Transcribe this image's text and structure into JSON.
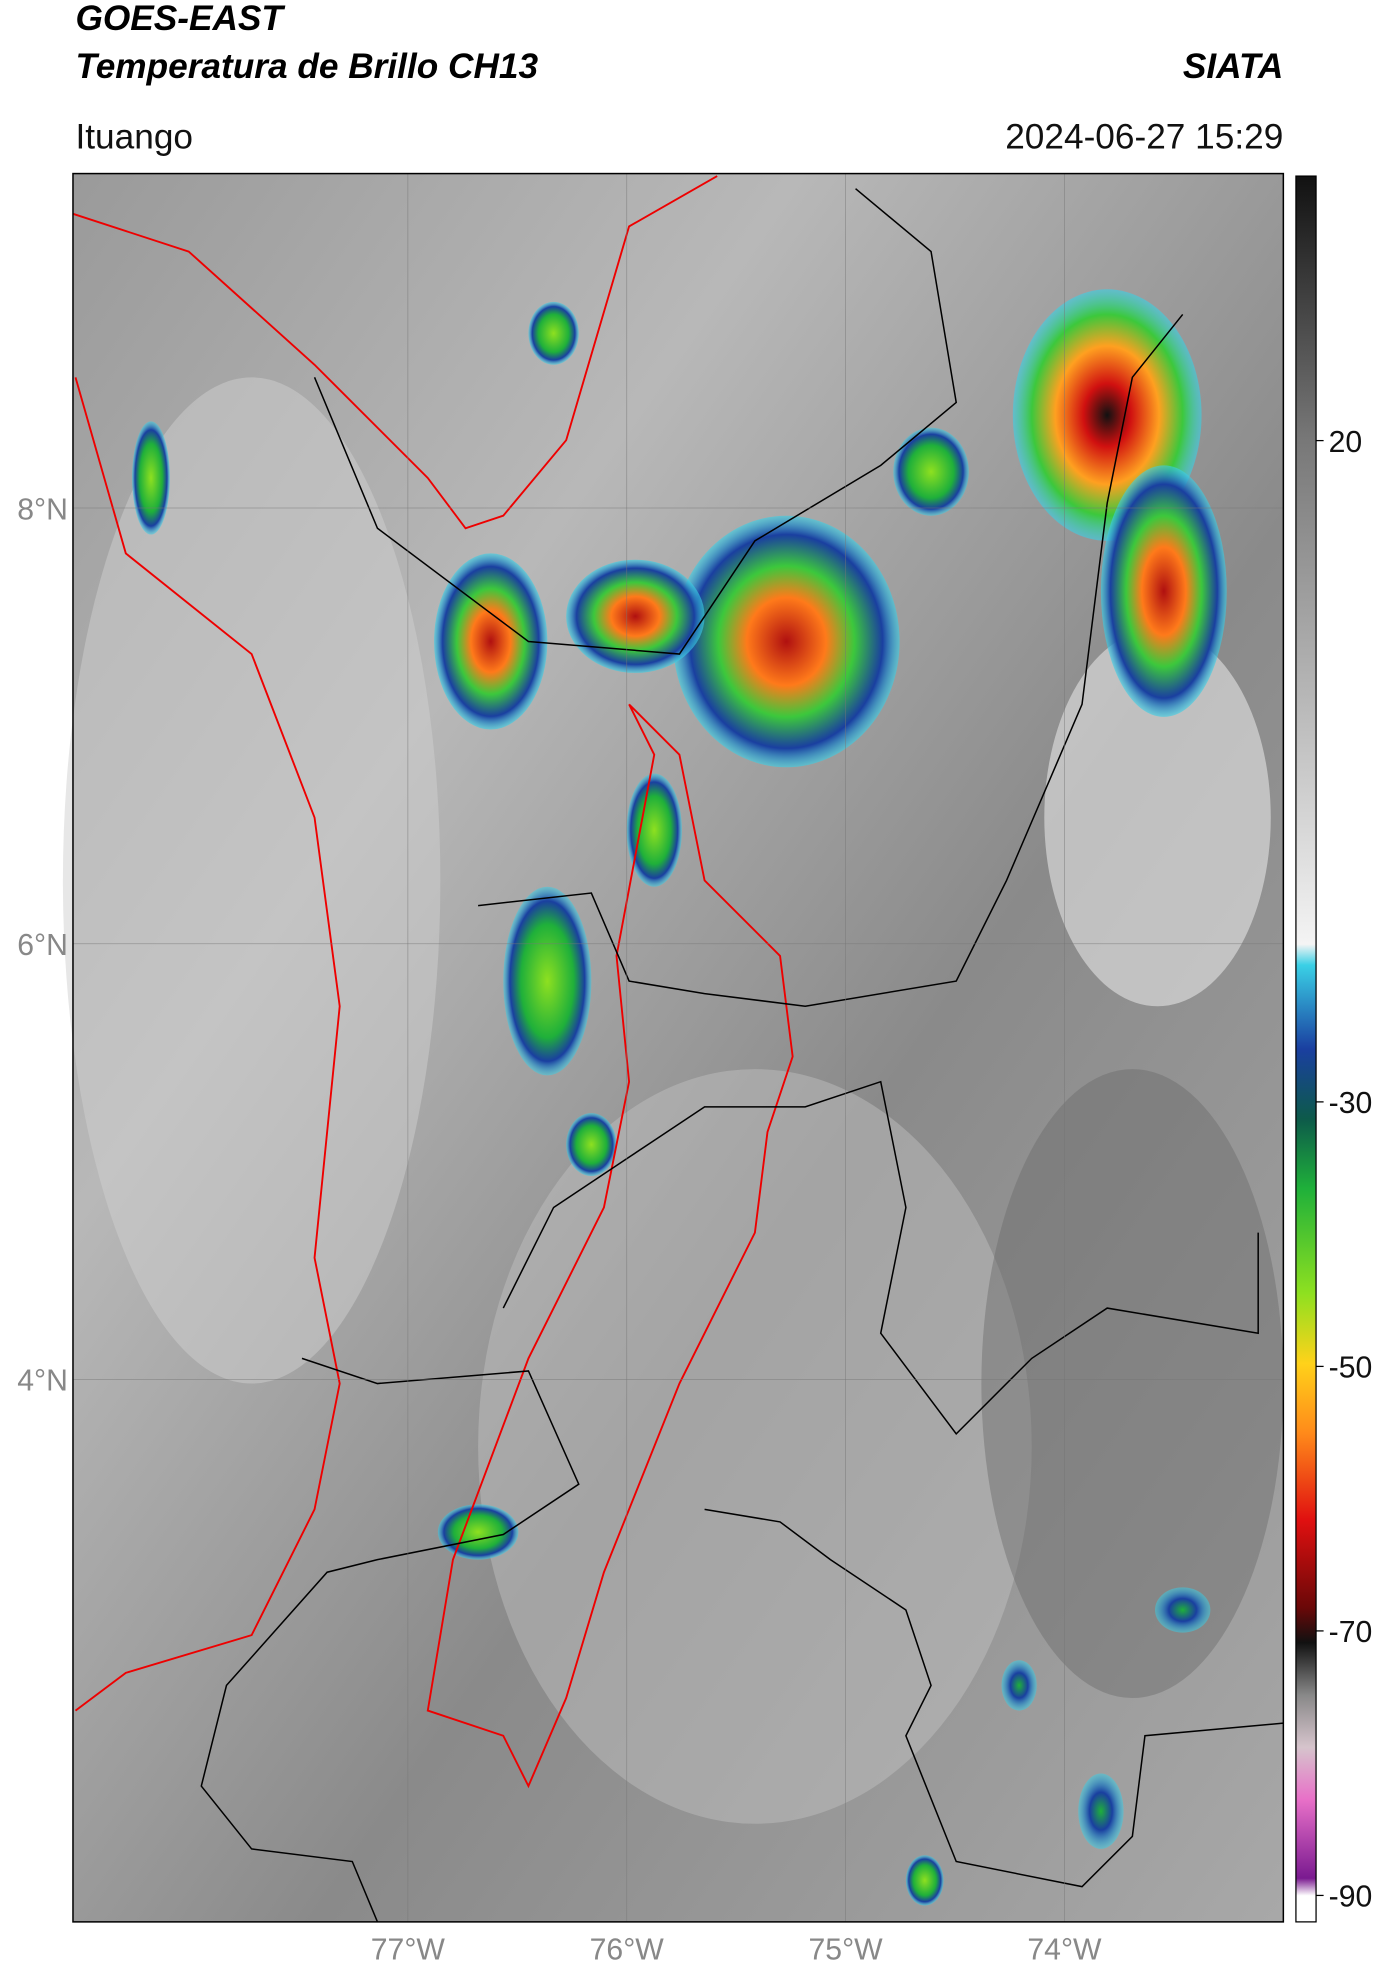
{
  "header": {
    "title_line1": "GOES-EAST",
    "title_line2": "Temperatura de Brillo CH13",
    "source": "SIATA",
    "region": "Ituango",
    "datetime": "2024-06-27 15:29"
  },
  "map": {
    "lon_range": [
      -78.53,
      -73.0
    ],
    "lat_range": [
      1.51,
      9.535
    ],
    "lat_ticks": [
      {
        "value": 8,
        "label": "8°N"
      },
      {
        "value": 6,
        "label": "6°N"
      },
      {
        "value": 4,
        "label": "4°N"
      }
    ],
    "lon_ticks": [
      {
        "value": -77,
        "label": "77°W"
      },
      {
        "value": -76,
        "label": "76°W"
      },
      {
        "value": -75,
        "label": "75°W"
      },
      {
        "value": -74,
        "label": "74°W"
      }
    ]
  },
  "colorbar": {
    "range": [
      -92,
      40
    ],
    "ticks": [
      20,
      -30,
      -50,
      -70,
      -90
    ]
  }
}
